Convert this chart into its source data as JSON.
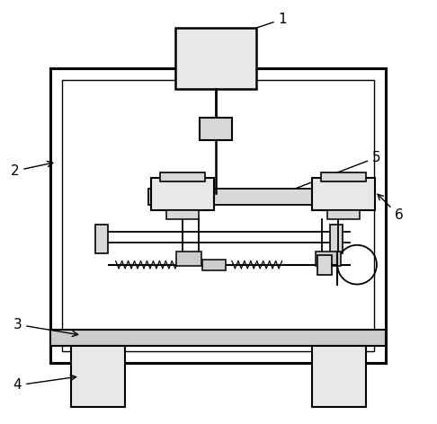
{
  "bg_color": "#ffffff",
  "lc": "#000000",
  "fc_gray": "#cccccc",
  "fc_light": "#e8e8e8",
  "fc_med": "#d8d8d8"
}
